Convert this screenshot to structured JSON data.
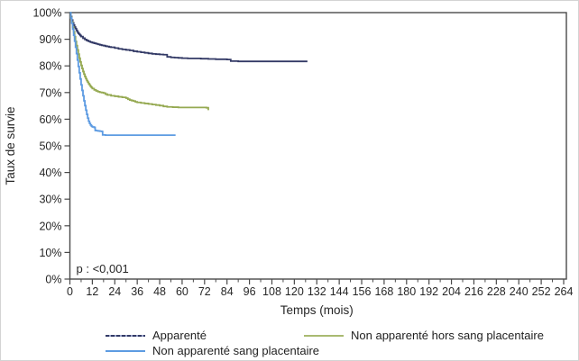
{
  "chart_data": {
    "type": "line",
    "step": "after",
    "xlabel": "Temps (mois)",
    "ylabel": "Taux de survie",
    "xlim": [
      0,
      264
    ],
    "ylim": [
      0,
      100
    ],
    "grid": false,
    "x_ticks": [
      0,
      12,
      24,
      36,
      48,
      60,
      72,
      84,
      96,
      108,
      120,
      132,
      144,
      156,
      168,
      180,
      192,
      204,
      216,
      228,
      240,
      252,
      264
    ],
    "x_tick_labels": [
      "0",
      "12",
      "24",
      "36",
      "48",
      "60",
      "72",
      "84",
      "96",
      "108",
      "120",
      "132",
      "144",
      "156",
      "168",
      "180",
      "192",
      "204",
      "216",
      "228",
      "240",
      "252",
      "264"
    ],
    "x_minor_tick_step": 6,
    "y_ticks": [
      0,
      10,
      20,
      30,
      40,
      50,
      60,
      70,
      80,
      90,
      100
    ],
    "y_tick_labels": [
      "0%",
      "10%",
      "20%",
      "30%",
      "40%",
      "50%",
      "60%",
      "70%",
      "80%",
      "90%",
      "100%"
    ],
    "annotation": {
      "text": "p : <0,001"
    },
    "axis_color": "#4a4a4a",
    "series": [
      {
        "id": "apparente",
        "name": "Apparenté",
        "color": "#333a66",
        "points": [
          [
            0,
            100
          ],
          [
            0.5,
            98.5
          ],
          [
            1,
            97.2
          ],
          [
            1.5,
            96.2
          ],
          [
            2,
            95.3
          ],
          [
            2.5,
            94.6
          ],
          [
            3,
            94
          ],
          [
            3.5,
            93.3
          ],
          [
            4,
            92.7
          ],
          [
            4.5,
            92.2
          ],
          [
            5,
            91.8
          ],
          [
            5.5,
            91.4
          ],
          [
            6,
            91
          ],
          [
            7,
            90.4
          ],
          [
            8,
            89.9
          ],
          [
            9,
            89.5
          ],
          [
            10,
            89.2
          ],
          [
            11,
            88.9
          ],
          [
            12,
            88.7
          ],
          [
            13,
            88.5
          ],
          [
            14,
            88.3
          ],
          [
            15,
            88.1
          ],
          [
            16,
            87.9
          ],
          [
            17,
            87.7
          ],
          [
            18,
            87.6
          ],
          [
            19,
            87.4
          ],
          [
            20,
            87.3
          ],
          [
            21,
            87.1
          ],
          [
            22,
            87
          ],
          [
            24,
            86.7
          ],
          [
            26,
            86.4
          ],
          [
            28,
            86.2
          ],
          [
            30,
            86
          ],
          [
            32,
            85.8
          ],
          [
            34,
            85.5
          ],
          [
            36,
            85.3
          ],
          [
            38,
            85.1
          ],
          [
            40,
            84.9
          ],
          [
            42,
            84.7
          ],
          [
            44,
            84.5
          ],
          [
            46,
            84.4
          ],
          [
            48,
            84.3
          ],
          [
            50,
            84.2
          ],
          [
            52,
            83.4
          ],
          [
            54,
            83.2
          ],
          [
            56,
            83.1
          ],
          [
            58,
            83
          ],
          [
            60,
            82.9
          ],
          [
            63,
            82.8
          ],
          [
            66,
            82.8
          ],
          [
            70,
            82.7
          ],
          [
            74,
            82.6
          ],
          [
            78,
            82.5
          ],
          [
            82,
            82.5
          ],
          [
            84,
            82.4
          ],
          [
            86,
            81.8
          ],
          [
            90,
            81.7
          ],
          [
            96,
            81.7
          ],
          [
            110,
            81.7
          ],
          [
            127,
            81.7
          ]
        ]
      },
      {
        "id": "non-apparente-hors-sang-placentaire",
        "name": "Non apparenté hors sang placentaire",
        "color": "#95a951",
        "points": [
          [
            0,
            100
          ],
          [
            0.5,
            98.2
          ],
          [
            1,
            96.4
          ],
          [
            1.5,
            94.6
          ],
          [
            2,
            92.8
          ],
          [
            2.5,
            91
          ],
          [
            3,
            89.2
          ],
          [
            3.5,
            87.6
          ],
          [
            4,
            86
          ],
          [
            4.5,
            84.4
          ],
          [
            5,
            82.9
          ],
          [
            5.5,
            81.5
          ],
          [
            6,
            80.2
          ],
          [
            6.5,
            79
          ],
          [
            7,
            77.9
          ],
          [
            7.5,
            76.9
          ],
          [
            8,
            76
          ],
          [
            8.5,
            75.2
          ],
          [
            9,
            74.5
          ],
          [
            9.5,
            73.9
          ],
          [
            10,
            73.3
          ],
          [
            10.5,
            72.8
          ],
          [
            11,
            72.3
          ],
          [
            11.5,
            71.9
          ],
          [
            12,
            71.5
          ],
          [
            13,
            71
          ],
          [
            14,
            70.6
          ],
          [
            15,
            70.3
          ],
          [
            16,
            70.1
          ],
          [
            17,
            70
          ],
          [
            18,
            69.8
          ],
          [
            19,
            69.4
          ],
          [
            20,
            69.1
          ],
          [
            22,
            68.8
          ],
          [
            24,
            68.6
          ],
          [
            26,
            68.4
          ],
          [
            28,
            68.2
          ],
          [
            30,
            67.9
          ],
          [
            31,
            67.5
          ],
          [
            32,
            67.2
          ],
          [
            33,
            67
          ],
          [
            34,
            66.8
          ],
          [
            35,
            66.5
          ],
          [
            36,
            66.3
          ],
          [
            38,
            66.1
          ],
          [
            40,
            65.9
          ],
          [
            42,
            65.7
          ],
          [
            44,
            65.5
          ],
          [
            46,
            65.3
          ],
          [
            48,
            65.1
          ],
          [
            50,
            64.8
          ],
          [
            52,
            64.6
          ],
          [
            55,
            64.5
          ],
          [
            58,
            64.4
          ],
          [
            62,
            64.4
          ],
          [
            66,
            64.4
          ],
          [
            70,
            64.4
          ],
          [
            73,
            64.3
          ],
          [
            74,
            63.4
          ]
        ]
      },
      {
        "id": "non-apparente-sang-placentaire",
        "name": "Non apparenté sang placentaire",
        "color": "#5d9be2",
        "points": [
          [
            0,
            100
          ],
          [
            0.5,
            98
          ],
          [
            1,
            96
          ],
          [
            1.5,
            93.8
          ],
          [
            2,
            91.5
          ],
          [
            2.5,
            89.3
          ],
          [
            3,
            87
          ],
          [
            3.5,
            84.6
          ],
          [
            4,
            82.2
          ],
          [
            4.5,
            79.8
          ],
          [
            5,
            77.4
          ],
          [
            5.5,
            75.1
          ],
          [
            6,
            72.9
          ],
          [
            6.5,
            70.8
          ],
          [
            7,
            68.8
          ],
          [
            7.5,
            66.9
          ],
          [
            8,
            65.1
          ],
          [
            8.5,
            63.4
          ],
          [
            9,
            61.8
          ],
          [
            9.5,
            60.4
          ],
          [
            10,
            59.2
          ],
          [
            10.5,
            58.4
          ],
          [
            11,
            57.8
          ],
          [
            11.5,
            57.4
          ],
          [
            12,
            57.1
          ],
          [
            13,
            56.9
          ],
          [
            13.5,
            55.8
          ],
          [
            14,
            55.7
          ],
          [
            15,
            55.6
          ],
          [
            16,
            55.5
          ],
          [
            17,
            55.4
          ],
          [
            17.5,
            54.1
          ],
          [
            19,
            54
          ],
          [
            22,
            54
          ],
          [
            26,
            54
          ],
          [
            32,
            54
          ],
          [
            40,
            54
          ],
          [
            48,
            54
          ],
          [
            56.5,
            54
          ]
        ]
      }
    ]
  },
  "legend": {
    "items": [
      {
        "label": "Apparenté",
        "color": "#333a66",
        "color_light": "#98a2c9",
        "style": "dashed"
      },
      {
        "label": "Non apparenté hors sang placentaire",
        "color": "#a9ba71",
        "color_light": "#a9ba71",
        "style": "solid"
      },
      {
        "label": "Non apparenté sang placentaire",
        "color": "#5d9be2",
        "color_light": "#5d9be2",
        "style": "solid"
      }
    ]
  }
}
